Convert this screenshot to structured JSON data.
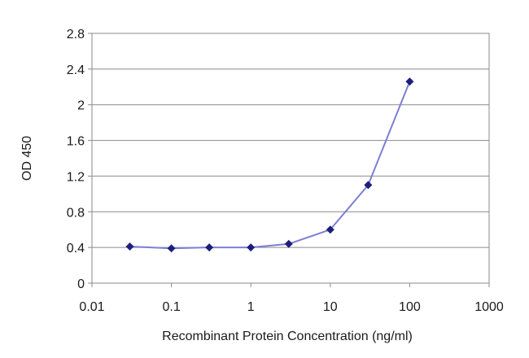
{
  "chart_data": {
    "type": "line",
    "title": "",
    "xlabel": "Recombinant Protein Concentration (ng/ml)",
    "ylabel": "OD 450",
    "x_scale": "log",
    "xlim": [
      0.01,
      1000
    ],
    "ylim": [
      0,
      2.8
    ],
    "x_ticks": [
      0.01,
      0.1,
      1,
      10,
      100,
      1000
    ],
    "x_tick_labels": [
      "0.01",
      "0.1",
      "1",
      "10",
      "100",
      "1000"
    ],
    "y_ticks": [
      0,
      0.4,
      0.8,
      1.2,
      1.6,
      2,
      2.4,
      2.8
    ],
    "y_tick_labels": [
      "0",
      "0.4",
      "0.8",
      "1.2",
      "1.6",
      "2",
      "2.4",
      "2.8"
    ],
    "grid": "horizontal",
    "legend": "none",
    "colors": {
      "line": "#7b7fd4",
      "marker": "#1c1f7a",
      "grid": "#8a8a8a",
      "frame": "#8a8a8a"
    },
    "series": [
      {
        "x": [
          0.03,
          0.1,
          0.3,
          1,
          3,
          10,
          30,
          100
        ],
        "y": [
          0.41,
          0.39,
          0.4,
          0.4,
          0.44,
          0.6,
          1.1,
          2.26
        ]
      }
    ]
  }
}
